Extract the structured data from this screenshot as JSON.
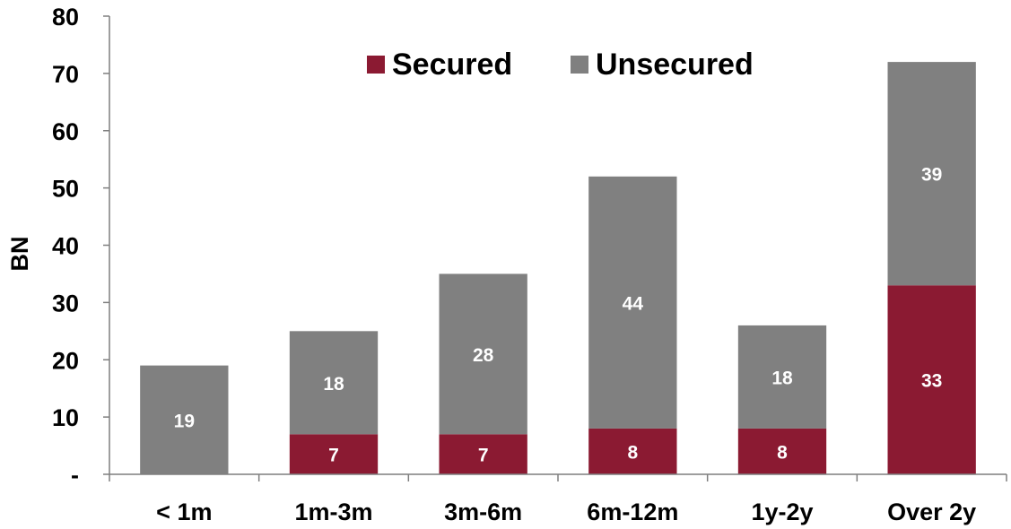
{
  "chart_data": {
    "type": "bar",
    "stacked": true,
    "categories": [
      "< 1m",
      "1m-3m",
      "3m-6m",
      "6m-12m",
      "1y-2y",
      "Over 2y"
    ],
    "series": [
      {
        "name": "Secured",
        "values": [
          0,
          7,
          7,
          8,
          8,
          33
        ],
        "color": "#8b1a32",
        "labels": [
          "",
          "7",
          "7",
          "8",
          "8",
          "33"
        ]
      },
      {
        "name": "Unsecured",
        "values": [
          19,
          18,
          28,
          44,
          18,
          39
        ],
        "color": "#808080",
        "labels": [
          "19",
          "18",
          "28",
          "44",
          "18",
          "39"
        ]
      }
    ],
    "ylabel": "BN",
    "xlabel": "",
    "ylim": [
      0,
      80
    ],
    "yticks": [
      0,
      10,
      20,
      30,
      40,
      50,
      60,
      70,
      80
    ],
    "ytick_labels": [
      "-",
      "10",
      "20",
      "30",
      "40",
      "50",
      "60",
      "70",
      "80"
    ],
    "grid": false,
    "legend_position": "top"
  }
}
